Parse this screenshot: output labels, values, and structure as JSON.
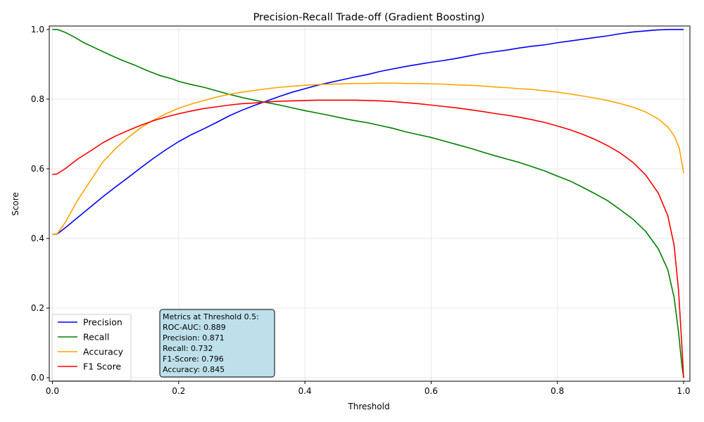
{
  "chart_data": {
    "type": "line",
    "title": "Precision-Recall Trade-off (Gradient Boosting)",
    "xlabel": "Threshold",
    "ylabel": "Score",
    "xlim": [
      -0.005,
      1.01
    ],
    "ylim": [
      -0.01,
      1.01
    ],
    "xticks": [
      0.0,
      0.2,
      0.4,
      0.6,
      0.8,
      1.0
    ],
    "xtick_labels": [
      "0.0",
      "0.2",
      "0.4",
      "0.6",
      "0.8",
      "1.0"
    ],
    "yticks": [
      0.0,
      0.2,
      0.4,
      0.6,
      0.8,
      1.0
    ],
    "ytick_labels": [
      "0.0",
      "0.2",
      "0.4",
      "0.6",
      "0.8",
      "1.0"
    ],
    "grid": true,
    "legend_position": "lower-left",
    "series": [
      {
        "name": "Precision",
        "color": "#0000ff",
        "points": [
          [
            0.0,
            0.412
          ],
          [
            0.007,
            0.412
          ],
          [
            0.02,
            0.43
          ],
          [
            0.04,
            0.46
          ],
          [
            0.06,
            0.49
          ],
          [
            0.08,
            0.52
          ],
          [
            0.1,
            0.548
          ],
          [
            0.12,
            0.575
          ],
          [
            0.14,
            0.603
          ],
          [
            0.16,
            0.63
          ],
          [
            0.18,
            0.655
          ],
          [
            0.2,
            0.678
          ],
          [
            0.22,
            0.698
          ],
          [
            0.24,
            0.715
          ],
          [
            0.26,
            0.733
          ],
          [
            0.28,
            0.752
          ],
          [
            0.3,
            0.768
          ],
          [
            0.32,
            0.782
          ],
          [
            0.34,
            0.795
          ],
          [
            0.36,
            0.808
          ],
          [
            0.38,
            0.82
          ],
          [
            0.4,
            0.83
          ],
          [
            0.42,
            0.84
          ],
          [
            0.44,
            0.848
          ],
          [
            0.46,
            0.856
          ],
          [
            0.48,
            0.864
          ],
          [
            0.5,
            0.871
          ],
          [
            0.52,
            0.88
          ],
          [
            0.54,
            0.887
          ],
          [
            0.56,
            0.894
          ],
          [
            0.58,
            0.9
          ],
          [
            0.6,
            0.906
          ],
          [
            0.62,
            0.911
          ],
          [
            0.64,
            0.917
          ],
          [
            0.66,
            0.924
          ],
          [
            0.68,
            0.931
          ],
          [
            0.7,
            0.936
          ],
          [
            0.72,
            0.941
          ],
          [
            0.74,
            0.947
          ],
          [
            0.76,
            0.952
          ],
          [
            0.78,
            0.956
          ],
          [
            0.8,
            0.962
          ],
          [
            0.82,
            0.967
          ],
          [
            0.84,
            0.972
          ],
          [
            0.86,
            0.977
          ],
          [
            0.88,
            0.982
          ],
          [
            0.9,
            0.988
          ],
          [
            0.92,
            0.993
          ],
          [
            0.94,
            0.996
          ],
          [
            0.96,
            0.999
          ],
          [
            0.98,
            1.0
          ],
          [
            1.0,
            1.0
          ]
        ]
      },
      {
        "name": "Recall",
        "color": "#008000",
        "points": [
          [
            0.0,
            1.0
          ],
          [
            0.008,
            1.0
          ],
          [
            0.02,
            0.992
          ],
          [
            0.035,
            0.978
          ],
          [
            0.05,
            0.962
          ],
          [
            0.07,
            0.945
          ],
          [
            0.09,
            0.928
          ],
          [
            0.11,
            0.912
          ],
          [
            0.13,
            0.898
          ],
          [
            0.15,
            0.882
          ],
          [
            0.17,
            0.868
          ],
          [
            0.19,
            0.858
          ],
          [
            0.2,
            0.851
          ],
          [
            0.22,
            0.842
          ],
          [
            0.24,
            0.834
          ],
          [
            0.26,
            0.824
          ],
          [
            0.28,
            0.814
          ],
          [
            0.3,
            0.805
          ],
          [
            0.32,
            0.797
          ],
          [
            0.34,
            0.79
          ],
          [
            0.36,
            0.783
          ],
          [
            0.38,
            0.775
          ],
          [
            0.4,
            0.767
          ],
          [
            0.42,
            0.76
          ],
          [
            0.44,
            0.753
          ],
          [
            0.46,
            0.745
          ],
          [
            0.48,
            0.738
          ],
          [
            0.5,
            0.732
          ],
          [
            0.52,
            0.724
          ],
          [
            0.54,
            0.716
          ],
          [
            0.56,
            0.706
          ],
          [
            0.58,
            0.698
          ],
          [
            0.6,
            0.69
          ],
          [
            0.62,
            0.68
          ],
          [
            0.64,
            0.67
          ],
          [
            0.66,
            0.66
          ],
          [
            0.68,
            0.649
          ],
          [
            0.7,
            0.638
          ],
          [
            0.72,
            0.628
          ],
          [
            0.74,
            0.618
          ],
          [
            0.76,
            0.606
          ],
          [
            0.78,
            0.594
          ],
          [
            0.8,
            0.579
          ],
          [
            0.82,
            0.565
          ],
          [
            0.84,
            0.547
          ],
          [
            0.86,
            0.528
          ],
          [
            0.88,
            0.508
          ],
          [
            0.9,
            0.482
          ],
          [
            0.92,
            0.455
          ],
          [
            0.94,
            0.42
          ],
          [
            0.96,
            0.37
          ],
          [
            0.975,
            0.31
          ],
          [
            0.985,
            0.23
          ],
          [
            0.992,
            0.13
          ],
          [
            0.997,
            0.04
          ],
          [
            1.0,
            0.0
          ]
        ]
      },
      {
        "name": "Accuracy",
        "color": "#ffa500",
        "points": [
          [
            0.0,
            0.412
          ],
          [
            0.007,
            0.412
          ],
          [
            0.02,
            0.445
          ],
          [
            0.04,
            0.51
          ],
          [
            0.06,
            0.565
          ],
          [
            0.08,
            0.62
          ],
          [
            0.1,
            0.658
          ],
          [
            0.12,
            0.69
          ],
          [
            0.14,
            0.718
          ],
          [
            0.16,
            0.74
          ],
          [
            0.18,
            0.758
          ],
          [
            0.2,
            0.774
          ],
          [
            0.22,
            0.786
          ],
          [
            0.24,
            0.796
          ],
          [
            0.26,
            0.806
          ],
          [
            0.28,
            0.814
          ],
          [
            0.3,
            0.82
          ],
          [
            0.32,
            0.825
          ],
          [
            0.34,
            0.83
          ],
          [
            0.36,
            0.834
          ],
          [
            0.38,
            0.837
          ],
          [
            0.4,
            0.84
          ],
          [
            0.42,
            0.842
          ],
          [
            0.44,
            0.843
          ],
          [
            0.46,
            0.844
          ],
          [
            0.48,
            0.845
          ],
          [
            0.5,
            0.845
          ],
          [
            0.52,
            0.846
          ],
          [
            0.54,
            0.846
          ],
          [
            0.56,
            0.845
          ],
          [
            0.58,
            0.845
          ],
          [
            0.6,
            0.844
          ],
          [
            0.62,
            0.843
          ],
          [
            0.64,
            0.841
          ],
          [
            0.66,
            0.84
          ],
          [
            0.68,
            0.838
          ],
          [
            0.7,
            0.835
          ],
          [
            0.72,
            0.833
          ],
          [
            0.74,
            0.83
          ],
          [
            0.76,
            0.828
          ],
          [
            0.78,
            0.824
          ],
          [
            0.8,
            0.82
          ],
          [
            0.82,
            0.815
          ],
          [
            0.84,
            0.809
          ],
          [
            0.86,
            0.803
          ],
          [
            0.88,
            0.796
          ],
          [
            0.9,
            0.787
          ],
          [
            0.92,
            0.777
          ],
          [
            0.94,
            0.763
          ],
          [
            0.96,
            0.743
          ],
          [
            0.975,
            0.72
          ],
          [
            0.985,
            0.695
          ],
          [
            0.993,
            0.66
          ],
          [
            0.997,
            0.62
          ],
          [
            1.0,
            0.588
          ]
        ]
      },
      {
        "name": "F1 Score",
        "color": "#ff0000",
        "points": [
          [
            0.0,
            0.584
          ],
          [
            0.007,
            0.585
          ],
          [
            0.02,
            0.6
          ],
          [
            0.04,
            0.628
          ],
          [
            0.06,
            0.651
          ],
          [
            0.08,
            0.675
          ],
          [
            0.1,
            0.694
          ],
          [
            0.12,
            0.71
          ],
          [
            0.14,
            0.725
          ],
          [
            0.16,
            0.738
          ],
          [
            0.18,
            0.749
          ],
          [
            0.2,
            0.758
          ],
          [
            0.22,
            0.766
          ],
          [
            0.24,
            0.773
          ],
          [
            0.26,
            0.778
          ],
          [
            0.28,
            0.783
          ],
          [
            0.3,
            0.787
          ],
          [
            0.32,
            0.789
          ],
          [
            0.34,
            0.792
          ],
          [
            0.36,
            0.794
          ],
          [
            0.38,
            0.795
          ],
          [
            0.4,
            0.796
          ],
          [
            0.42,
            0.797
          ],
          [
            0.44,
            0.797
          ],
          [
            0.46,
            0.797
          ],
          [
            0.48,
            0.797
          ],
          [
            0.5,
            0.796
          ],
          [
            0.52,
            0.795
          ],
          [
            0.54,
            0.793
          ],
          [
            0.56,
            0.79
          ],
          [
            0.58,
            0.787
          ],
          [
            0.6,
            0.783
          ],
          [
            0.62,
            0.779
          ],
          [
            0.64,
            0.775
          ],
          [
            0.66,
            0.77
          ],
          [
            0.68,
            0.765
          ],
          [
            0.7,
            0.759
          ],
          [
            0.72,
            0.754
          ],
          [
            0.74,
            0.748
          ],
          [
            0.76,
            0.741
          ],
          [
            0.78,
            0.733
          ],
          [
            0.8,
            0.723
          ],
          [
            0.82,
            0.712
          ],
          [
            0.84,
            0.699
          ],
          [
            0.86,
            0.684
          ],
          [
            0.88,
            0.666
          ],
          [
            0.9,
            0.645
          ],
          [
            0.92,
            0.618
          ],
          [
            0.94,
            0.582
          ],
          [
            0.96,
            0.53
          ],
          [
            0.975,
            0.465
          ],
          [
            0.985,
            0.38
          ],
          [
            0.992,
            0.25
          ],
          [
            0.997,
            0.1
          ],
          [
            1.0,
            0.0
          ]
        ]
      }
    ],
    "annotation": {
      "lines": [
        "Metrics at Threshold 0.5:",
        "ROC-AUC: 0.889",
        "Precision: 0.871",
        "Recall: 0.732",
        "F1-Score: 0.796",
        "Accuracy: 0.845"
      ],
      "background": "#add8e6"
    }
  }
}
